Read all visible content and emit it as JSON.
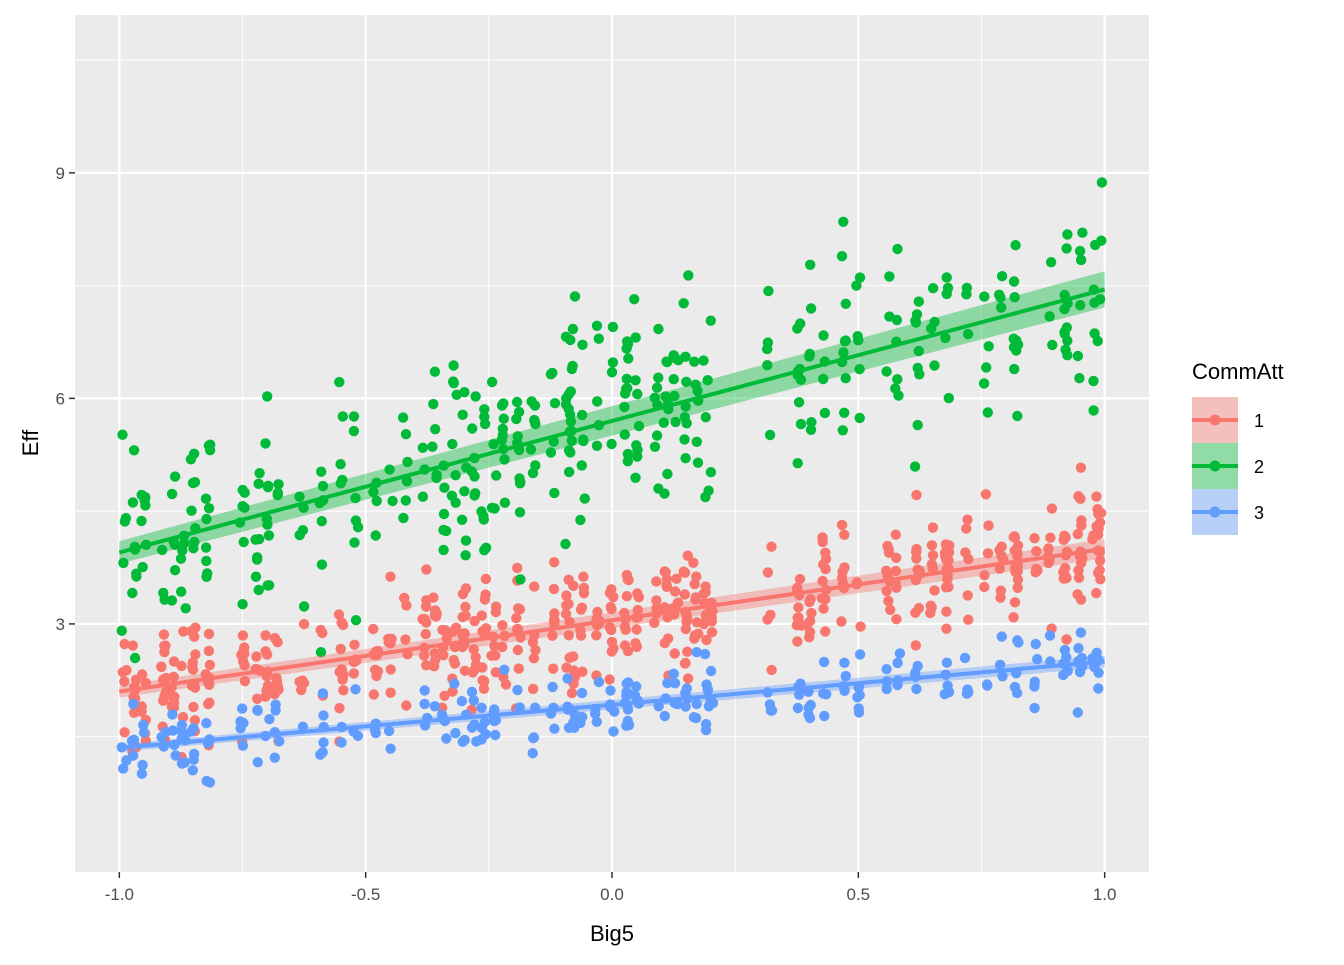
{
  "chart_data": {
    "type": "scatter",
    "title": "",
    "xlabel": "Big5",
    "ylabel": "Eff",
    "xlim": [
      -1.09,
      1.09
    ],
    "ylim": [
      -0.3,
      11.1
    ],
    "x_ticks": [
      -1.0,
      -0.5,
      0.0,
      0.5,
      1.0
    ],
    "x_tick_labels": [
      "-1.0",
      "-0.5",
      "0.0",
      "0.5",
      "1.0"
    ],
    "y_ticks": [
      3,
      6,
      9
    ],
    "y_tick_labels": [
      "3",
      "6",
      "9"
    ],
    "grid": true,
    "legend": {
      "title": "CommAtt",
      "position": "right",
      "entries": [
        "1",
        "2",
        "3"
      ]
    },
    "x_columns": [
      -0.99,
      -0.97,
      -0.95,
      -0.91,
      -0.89,
      -0.87,
      -0.85,
      -0.82,
      -0.75,
      -0.72,
      -0.7,
      -0.68,
      -0.63,
      -0.59,
      -0.55,
      -0.52,
      -0.48,
      -0.45,
      -0.42,
      -0.38,
      -0.36,
      -0.34,
      -0.32,
      -0.3,
      -0.28,
      -0.26,
      -0.24,
      -0.22,
      -0.19,
      -0.16,
      -0.12,
      -0.09,
      -0.08,
      -0.06,
      -0.03,
      0.0,
      0.03,
      0.05,
      0.09,
      0.11,
      0.13,
      0.15,
      0.17,
      0.19,
      0.2,
      0.32,
      0.38,
      0.4,
      0.43,
      0.47,
      0.5,
      0.56,
      0.58,
      0.62,
      0.65,
      0.68,
      0.72,
      0.76,
      0.79,
      0.82,
      0.86,
      0.89,
      0.92,
      0.95,
      0.98,
      0.99
    ],
    "series": [
      {
        "name": "1",
        "color": "#F8766D",
        "fit": {
          "x": [
            -1.0,
            1.0
          ],
          "y": [
            2.1,
            4.0
          ],
          "se": 0.08
        },
        "y_center": {
          "at_x_-1": 2.1,
          "at_x_1": 4.0
        },
        "y_spread": 0.9,
        "count": 560
      },
      {
        "name": "2",
        "color": "#00BA38",
        "fit": {
          "x": [
            -1.0,
            1.0
          ],
          "y": [
            3.95,
            7.45
          ],
          "se": 0.15
        },
        "y_center": {
          "at_x_-1": 3.95,
          "at_x_1": 7.45
        },
        "y_spread": 1.5,
        "count": 420
      },
      {
        "name": "3",
        "color": "#619CFF",
        "fit": {
          "x": [
            -1.0,
            1.0
          ],
          "y": [
            1.35,
            2.5
          ],
          "se": 0.05
        },
        "y_center": {
          "at_x_-1": 1.35,
          "at_x_1": 2.5
        },
        "y_spread": 0.55,
        "count": 260
      }
    ]
  }
}
